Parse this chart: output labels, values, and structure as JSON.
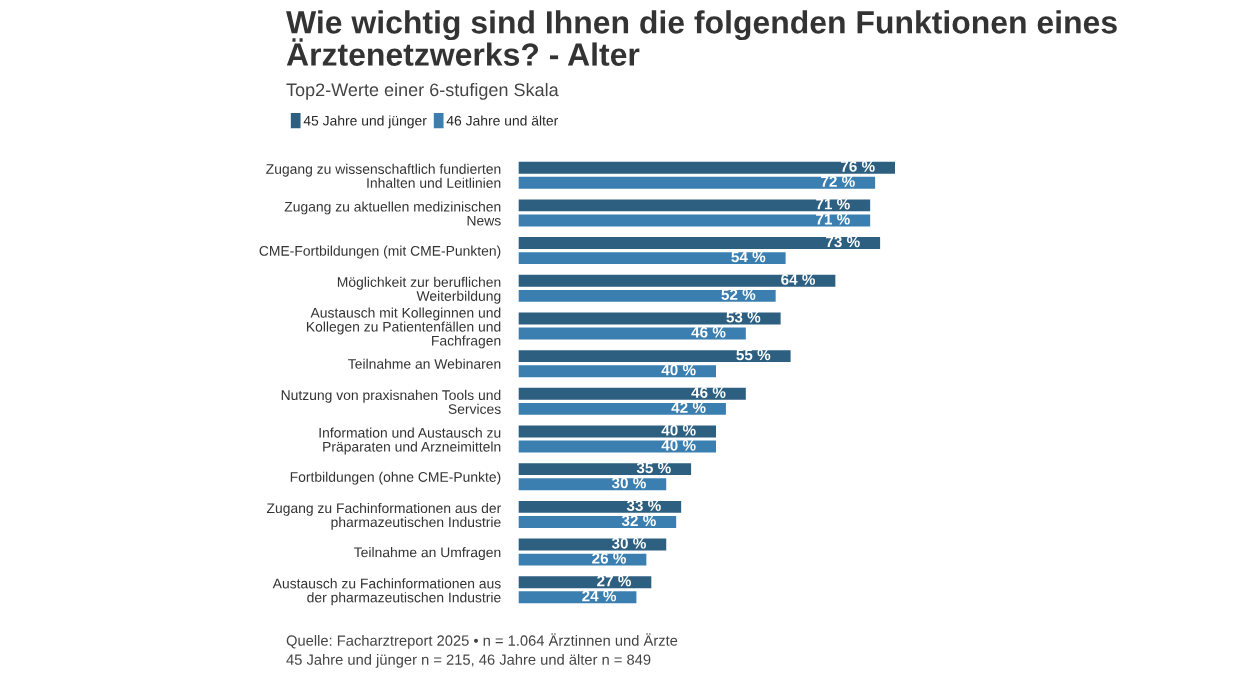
{
  "chart_data": {
    "type": "bar",
    "orientation": "horizontal",
    "title": "Wie wichtig sind Ihnen die folgenden Funktionen eines\nÄrztenetzwerks? - Alter",
    "subtitle": "Top2-Werte einer 6-stufigen Skala",
    "categories": [
      "Zugang zu wissenschaftlich fundierten\nInhalten und Leitlinien",
      "Zugang zu aktuellen medizinischen\nNews",
      "CME-Fortbildungen (mit CME-Punkten)",
      "Möglichkeit zur beruflichen\nWeiterbildung",
      "Austausch mit Kolleginnen und\nKollegen zu Patientenfällen und\nFachfragen",
      "Teilnahme an Webinaren",
      "Nutzung von praxisnahen Tools und\nServices",
      "Information und Austausch zu\nPräparaten und Arzneimitteln",
      "Fortbildungen (ohne CME-Punkte)",
      "Zugang zu Fachinformationen aus der\npharmazeutischen Industrie",
      "Teilnahme an Umfragen",
      "Austausch zu Fachinformationen aus\nder pharmazeutischen Industrie"
    ],
    "series": [
      {
        "name": "45 Jahre und jünger",
        "color": "#2d5f80",
        "values": [
          76,
          71,
          73,
          64,
          53,
          55,
          46,
          40,
          35,
          33,
          30,
          27
        ],
        "value_labels": [
          "76 %",
          "71 %",
          "73 %",
          "64 %",
          "53 %",
          "55 %",
          "46 %",
          "40 %",
          "35 %",
          "33 %",
          "30 %",
          "27 %"
        ]
      },
      {
        "name": "46 Jahre und älter",
        "color": "#3b7fb1",
        "values": [
          72,
          71,
          54,
          52,
          46,
          40,
          42,
          40,
          30,
          32,
          26,
          24
        ],
        "value_labels": [
          "72 %",
          "71 %",
          "54 %",
          "52 %",
          "46 %",
          "40 %",
          "42 %",
          "40 %",
          "30 %",
          "32 %",
          "26 %",
          "24 %"
        ]
      }
    ],
    "legend": "top left",
    "grid": false,
    "annotations": [
      "Quelle: Facharztreport 2025 • n = 1.064 Ärztinnen und Ärzte\n45 Jahre und jünger n = 215, 46 Jahre und älter n = 849"
    ]
  }
}
